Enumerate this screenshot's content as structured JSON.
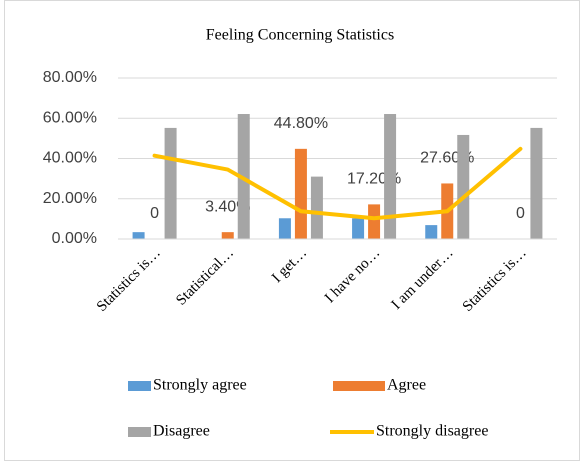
{
  "chart_data": {
    "type": "bar",
    "title": "Feeling Concerning Statistics",
    "categories": [
      "Statistics is…",
      "Statistical…",
      "I get…",
      "I have no…",
      "I am under…",
      "Statistics is…"
    ],
    "series": [
      {
        "name": "Strongly agree",
        "color": "#5b9bd5",
        "values": [
          3.4,
          0,
          10.3,
          10.3,
          6.9,
          0
        ]
      },
      {
        "name": "Agree",
        "color": "#ed7d31",
        "values": [
          0,
          3.4,
          44.8,
          17.2,
          27.6,
          0
        ],
        "value_labels": [
          "0",
          "3.40%",
          "44.80%",
          "17.20%",
          "27.60%",
          "0"
        ]
      },
      {
        "name": "Disagree",
        "color": "#a5a5a5",
        "values": [
          55.2,
          62.1,
          31,
          62.1,
          51.7,
          55.2
        ]
      },
      {
        "name": "Strongly disagree",
        "color": "#ffc000",
        "type": "line",
        "values": [
          41.4,
          34.5,
          13.8,
          10.3,
          13.8,
          44.8
        ]
      }
    ],
    "ylim": [
      0,
      80
    ],
    "yticks": [
      {
        "value": 0,
        "label": "0.00%"
      },
      {
        "value": 20,
        "label": "20.00%"
      },
      {
        "value": 40,
        "label": "40.00%"
      },
      {
        "value": 60,
        "label": "60.00%"
      },
      {
        "value": 80,
        "label": "80.00%"
      }
    ],
    "grid": true,
    "legend": "bottom"
  }
}
